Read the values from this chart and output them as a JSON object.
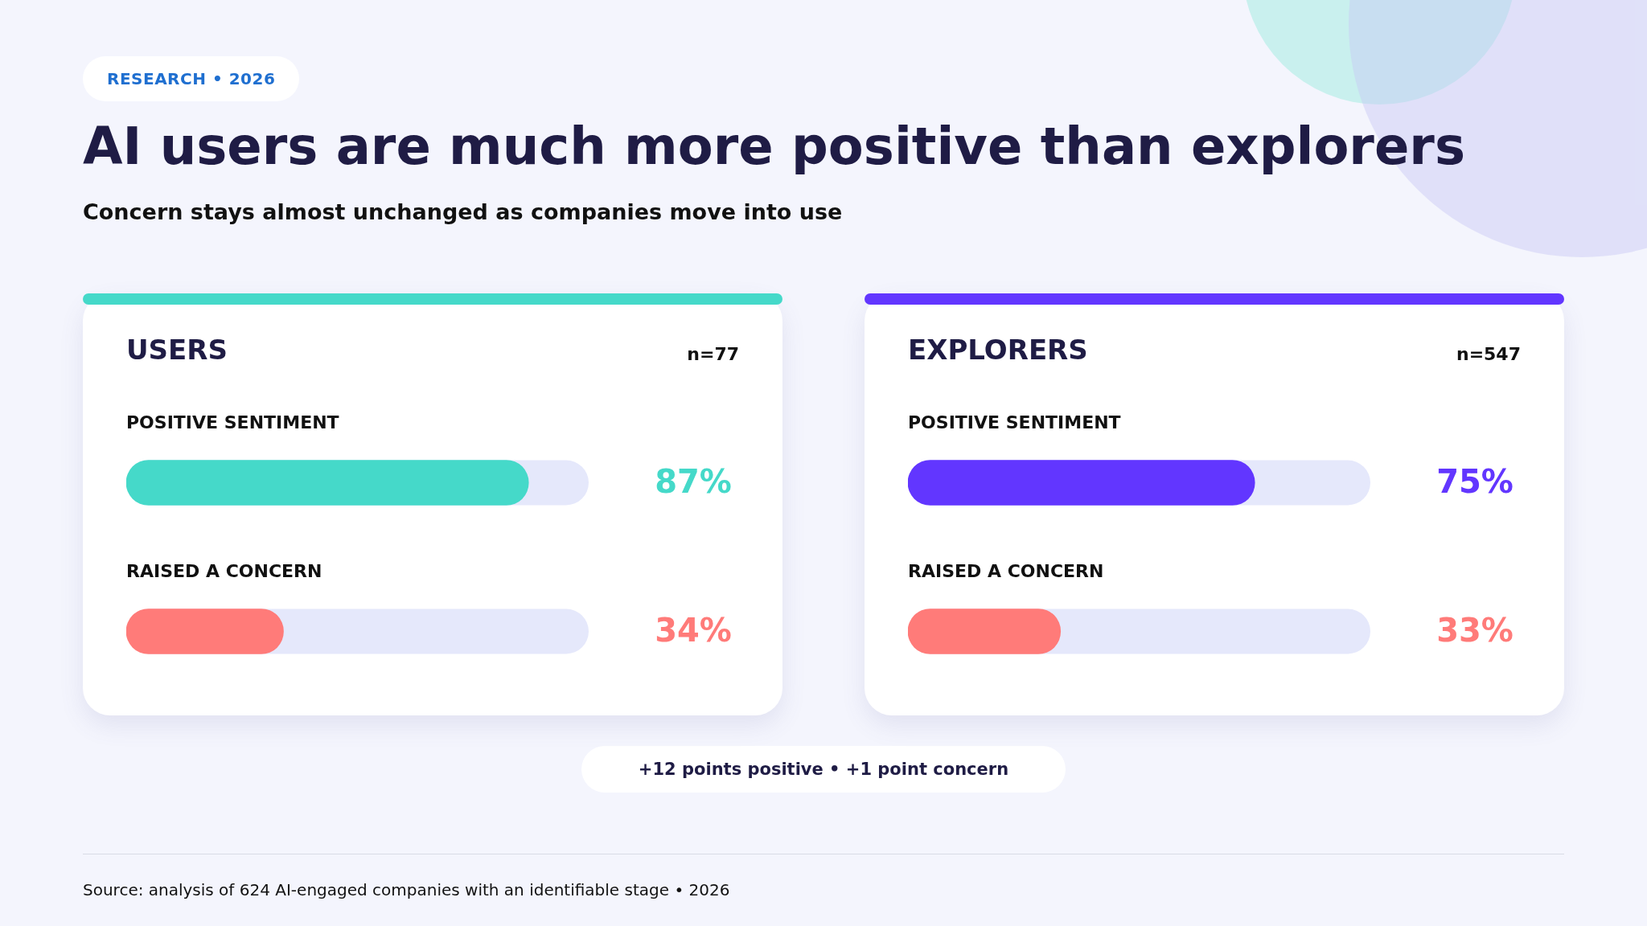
{
  "chart_data": [
    {
      "type": "other",
      "title": "AI users are much more positive than explorers",
      "subtitle": "Concern stays almost unchanged as companies move into use",
      "annotations": [
        "RESEARCH • 2026",
        "+12 points positive • +1 point concern",
        "Source: analysis of 624 AI-engaged companies with an identifiable stage • 2026"
      ]
    },
    {
      "type": "bar",
      "orientation": "horizontal",
      "title": "USERS",
      "annotations": [
        "n=77"
      ],
      "categories": [
        "POSITIVE SENTIMENT",
        "RAISED A CONCERN"
      ],
      "values": [
        87,
        34
      ],
      "colors": [
        "#45d9c9",
        "#ff7b79"
      ],
      "value_labels": [
        "87%",
        "34%"
      ],
      "xlim": [
        0,
        100
      ],
      "tick_labels": false
    },
    {
      "type": "bar",
      "orientation": "horizontal",
      "title": "EXPLORERS",
      "annotations": [
        "n=547"
      ],
      "categories": [
        "POSITIVE SENTIMENT",
        "RAISED A CONCERN"
      ],
      "values": [
        75,
        33
      ],
      "colors": [
        "#6236ff",
        "#ff7b79"
      ],
      "value_labels": [
        "75%",
        "33%"
      ],
      "xlim": [
        0,
        100
      ],
      "tick_labels": false
    }
  ]
}
